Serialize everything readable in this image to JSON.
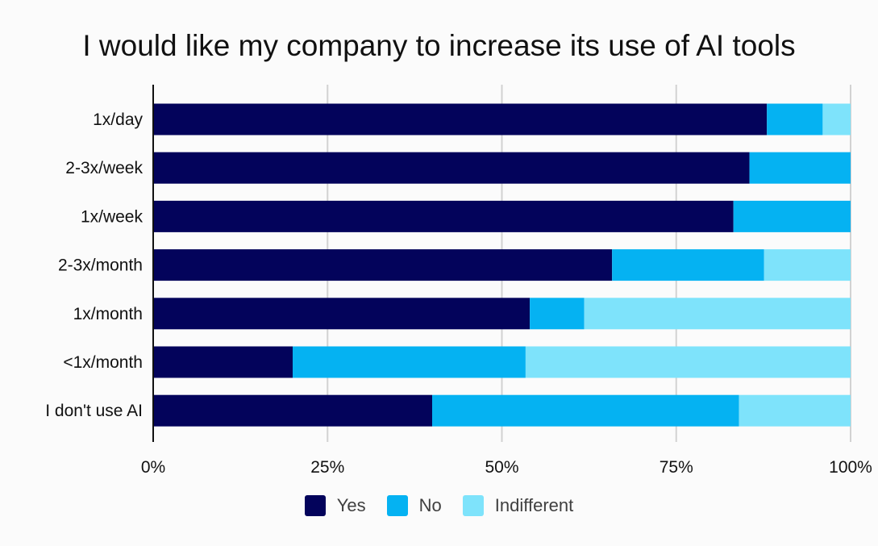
{
  "chart_data": {
    "type": "bar",
    "orientation": "horizontal",
    "stacked": true,
    "title": "I would like my company to increase its use of AI tools",
    "categories": [
      "1x/day",
      "2-3x/week",
      "1x/week",
      "2-3x/month",
      "1x/month",
      "<1x/month",
      "I don't use AI"
    ],
    "series": [
      {
        "name": "Yes",
        "color": "#03035b",
        "values": [
          88,
          85.5,
          83.2,
          65.8,
          54,
          20,
          40
        ]
      },
      {
        "name": "No",
        "color": "#05b2f2",
        "values": [
          8,
          14.5,
          16.8,
          21.8,
          7.8,
          33.4,
          44
        ]
      },
      {
        "name": "Indifferent",
        "color": "#7ee3fb",
        "values": [
          4,
          0,
          0,
          12.4,
          38.2,
          46.6,
          16
        ]
      }
    ],
    "xlim": [
      0,
      100
    ],
    "xticks": [
      "0%",
      "25%",
      "50%",
      "75%",
      "100%"
    ],
    "grid": true,
    "legend_position": "bottom"
  }
}
